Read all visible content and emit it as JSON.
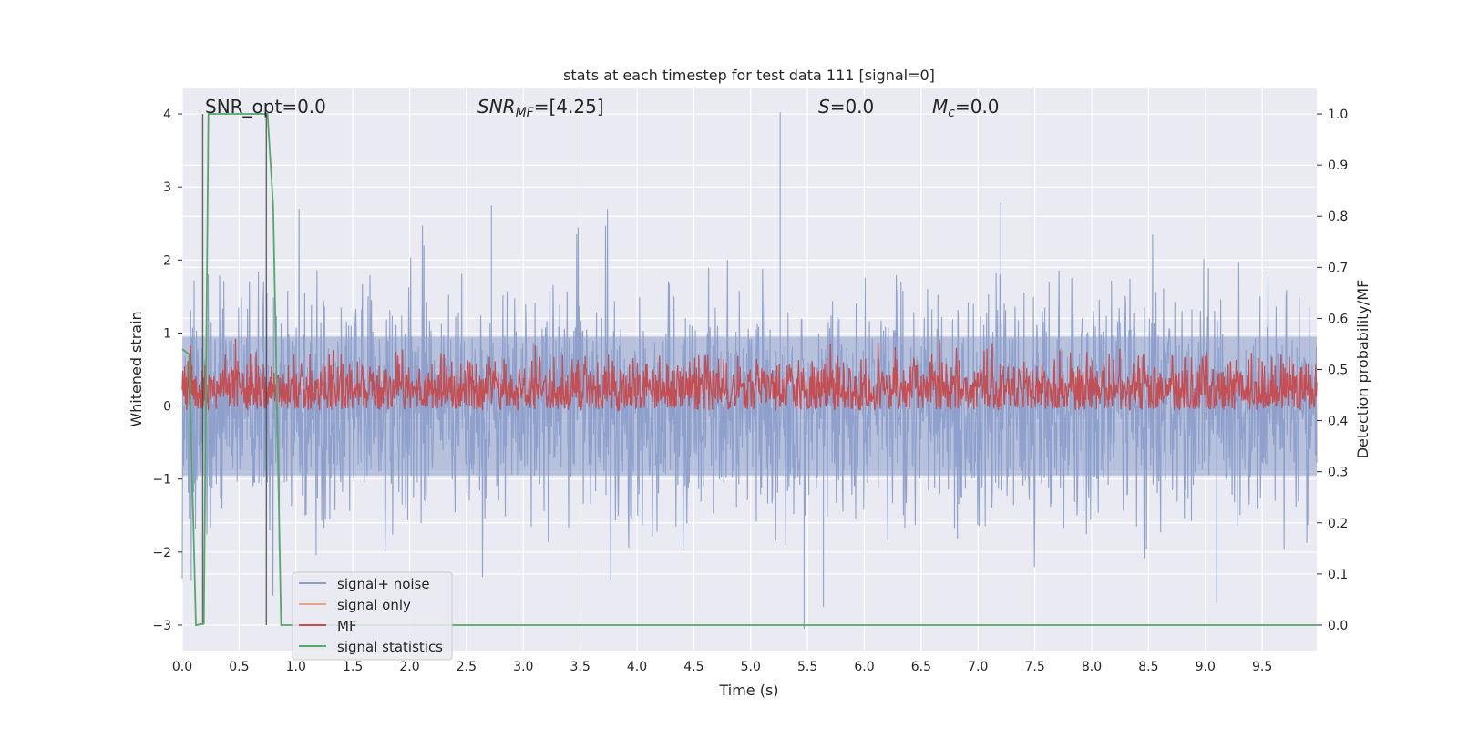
{
  "chart_data": {
    "type": "line",
    "title": "stats at each timestep for test data 111 [signal=0]",
    "xlabel": "Time (s)",
    "ylabel_left": "Whitened strain",
    "ylabel_right": "Detection probability/MF",
    "xlim": [
      0.0,
      9.98
    ],
    "ylim_left": [
      -3.35,
      4.35
    ],
    "ylim_right": [
      -0.05,
      1.05
    ],
    "x_ticks": [
      "0.0",
      "0.5",
      "1.0",
      "1.5",
      "2.0",
      "2.5",
      "3.0",
      "3.5",
      "4.0",
      "4.5",
      "5.0",
      "5.5",
      "6.0",
      "6.5",
      "7.0",
      "7.5",
      "8.0",
      "8.5",
      "9.0",
      "9.5"
    ],
    "y_ticks_left": [
      "−3",
      "−2",
      "−1",
      "0",
      "1",
      "2",
      "3",
      "4"
    ],
    "y_ticks_right": [
      "0.0",
      "0.1",
      "0.2",
      "0.3",
      "0.4",
      "0.5",
      "0.6",
      "0.7",
      "0.8",
      "0.9",
      "1.0"
    ],
    "grid": true,
    "legend_position": "lower-left",
    "annotations": {
      "snr_opt": "SNR_opt=0.0",
      "snr_mf_italic": "SNR",
      "snr_mf_sub": "MF",
      "snr_mf_value": "=[4.25]",
      "s_italic": "S",
      "s_value": "=0.0",
      "mc_italic": "M",
      "mc_sub": "c",
      "mc_value": "=0.0"
    },
    "series": [
      {
        "name": "signal+ noise",
        "color": "#8c9fca",
        "axis": "left",
        "description_only_visual": true
      },
      {
        "name": "signal only",
        "color": "#e8a58a",
        "axis": "left",
        "values": []
      },
      {
        "name": "MF",
        "color": "#c44e52",
        "axis": "right"
      },
      {
        "name": "signal statistics",
        "color": "#55a868",
        "axis": "right",
        "x": [
          0.0,
          0.06,
          0.12,
          0.19,
          0.23,
          0.25,
          0.5,
          0.75,
          0.8,
          0.87,
          9.98
        ],
        "y": [
          0.54,
          0.53,
          0.0,
          0.003,
          1.0,
          1.0,
          1.0,
          1.0,
          0.82,
          0.0,
          0.0
        ]
      }
    ],
    "vlines": [
      0.18,
      0.74
    ],
    "noise_peaks": [
      {
        "x": 5.26,
        "y": 4.02
      },
      {
        "x": 5.47,
        "y": -3.05
      },
      {
        "x": 5.64,
        "y": -2.75
      },
      {
        "x": 9.1,
        "y": -2.7
      },
      {
        "x": 7.2,
        "y": 2.78
      },
      {
        "x": 2.72,
        "y": 2.75
      }
    ]
  }
}
